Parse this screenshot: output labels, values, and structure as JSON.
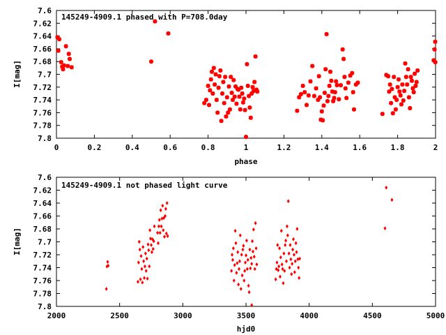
{
  "chart_data": [
    {
      "type": "scatter",
      "title": "145249-4909.1 phased with P=708.0day",
      "xlabel": "phase",
      "ylabel": "I[mag]",
      "xlim": [
        0,
        2
      ],
      "ylim": [
        7.8,
        7.6
      ],
      "y_inverted": true,
      "x_ticks": [
        "0",
        "0.2",
        "0.4",
        "0.6",
        "0.8",
        "1",
        "1.2",
        "1.4",
        "1.6",
        "1.8",
        "2"
      ],
      "y_ticks": [
        "7.6",
        "7.62",
        "7.64",
        "7.66",
        "7.68",
        "7.7",
        "7.72",
        "7.74",
        "7.76",
        "7.78",
        "7.8"
      ],
      "marker": "asterisk",
      "color": "#ff0000",
      "grid": false,
      "points": [
        [
          0.005,
          7.642
        ],
        [
          0.01,
          7.663
        ],
        [
          0.015,
          7.645
        ],
        [
          0.025,
          7.681
        ],
        [
          0.03,
          7.688
        ],
        [
          0.035,
          7.692
        ],
        [
          0.04,
          7.686
        ],
        [
          0.05,
          7.656
        ],
        [
          0.06,
          7.687
        ],
        [
          0.065,
          7.668
        ],
        [
          0.07,
          7.676
        ],
        [
          0.08,
          7.689
        ],
        [
          0.5,
          7.68
        ],
        [
          0.52,
          7.617
        ],
        [
          0.59,
          7.636
        ],
        [
          0.78,
          7.745
        ],
        [
          0.79,
          7.74
        ],
        [
          0.8,
          7.718
        ],
        [
          0.805,
          7.748
        ],
        [
          0.81,
          7.725
        ],
        [
          0.815,
          7.708
        ],
        [
          0.82,
          7.696
        ],
        [
          0.825,
          7.73
        ],
        [
          0.83,
          7.69
        ],
        [
          0.835,
          7.716
        ],
        [
          0.84,
          7.7
        ],
        [
          0.845,
          7.74
        ],
        [
          0.85,
          7.76
        ],
        [
          0.855,
          7.721
        ],
        [
          0.86,
          7.703
        ],
        [
          0.865,
          7.694
        ],
        [
          0.87,
          7.773
        ],
        [
          0.875,
          7.73
        ],
        [
          0.88,
          7.712
        ],
        [
          0.885,
          7.745
        ],
        [
          0.89,
          7.704
        ],
        [
          0.895,
          7.766
        ],
        [
          0.9,
          7.736
        ],
        [
          0.905,
          7.76
        ],
        [
          0.91,
          7.719
        ],
        [
          0.915,
          7.755
        ],
        [
          0.92,
          7.704
        ],
        [
          0.925,
          7.729
        ],
        [
          0.93,
          7.74
        ],
        [
          0.935,
          7.709
        ],
        [
          0.94,
          7.735
        ],
        [
          0.945,
          7.719
        ],
        [
          0.95,
          7.746
        ],
        [
          0.955,
          7.723
        ],
        [
          0.96,
          7.724
        ],
        [
          0.965,
          7.735
        ],
        [
          0.97,
          7.755
        ],
        [
          0.975,
          7.721
        ],
        [
          0.98,
          7.73
        ],
        [
          0.985,
          7.744
        ],
        [
          0.99,
          7.738
        ],
        [
          0.995,
          7.756
        ],
        [
          1.0,
          7.798
        ],
        [
          1.005,
          7.684
        ],
        [
          1.01,
          7.718
        ],
        [
          1.015,
          7.734
        ],
        [
          1.02,
          7.752
        ],
        [
          1.025,
          7.768
        ],
        [
          1.03,
          7.73
        ],
        [
          1.035,
          7.72
        ],
        [
          1.04,
          7.726
        ],
        [
          1.045,
          7.712
        ],
        [
          1.05,
          7.672
        ],
        [
          1.055,
          7.724
        ],
        [
          1.06,
          7.727
        ],
        [
          1.27,
          7.757
        ],
        [
          1.28,
          7.736
        ],
        [
          1.29,
          7.731
        ],
        [
          1.3,
          7.718
        ],
        [
          1.31,
          7.728
        ],
        [
          1.32,
          7.748
        ],
        [
          1.33,
          7.733
        ],
        [
          1.34,
          7.711
        ],
        [
          1.35,
          7.687
        ],
        [
          1.36,
          7.734
        ],
        [
          1.37,
          7.722
        ],
        [
          1.38,
          7.74
        ],
        [
          1.385,
          7.703
        ],
        [
          1.39,
          7.736
        ],
        [
          1.395,
          7.771
        ],
        [
          1.4,
          7.758
        ],
        [
          1.405,
          7.772
        ],
        [
          1.41,
          7.749
        ],
        [
          1.415,
          7.729
        ],
        [
          1.42,
          7.692
        ],
        [
          1.425,
          7.637
        ],
        [
          1.43,
          7.742
        ],
        [
          1.435,
          7.734
        ],
        [
          1.44,
          7.718
        ],
        [
          1.445,
          7.696
        ],
        [
          1.45,
          7.71
        ],
        [
          1.455,
          7.727
        ],
        [
          1.46,
          7.742
        ],
        [
          1.465,
          7.737
        ],
        [
          1.47,
          7.728
        ],
        [
          1.475,
          7.711
        ],
        [
          1.48,
          7.717
        ],
        [
          1.49,
          7.739
        ],
        [
          1.5,
          7.717
        ],
        [
          1.51,
          7.661
        ],
        [
          1.515,
          7.676
        ],
        [
          1.52,
          7.704
        ],
        [
          1.525,
          7.722
        ],
        [
          1.53,
          7.737
        ],
        [
          1.54,
          7.713
        ],
        [
          1.55,
          7.702
        ],
        [
          1.56,
          7.698
        ],
        [
          1.565,
          7.728
        ],
        [
          1.57,
          7.755
        ],
        [
          1.58,
          7.716
        ],
        [
          1.59,
          7.713
        ],
        [
          1.72,
          7.762
        ],
        [
          1.74,
          7.701
        ],
        [
          1.75,
          7.703
        ],
        [
          1.755,
          7.727
        ],
        [
          1.76,
          7.716
        ],
        [
          1.765,
          7.745
        ],
        [
          1.77,
          7.723
        ],
        [
          1.775,
          7.761
        ],
        [
          1.78,
          7.704
        ],
        [
          1.785,
          7.736
        ],
        [
          1.79,
          7.755
        ],
        [
          1.795,
          7.74
        ],
        [
          1.8,
          7.72
        ],
        [
          1.805,
          7.708
        ],
        [
          1.81,
          7.727
        ],
        [
          1.815,
          7.733
        ],
        [
          1.82,
          7.747
        ],
        [
          1.825,
          7.716
        ],
        [
          1.83,
          7.741
        ],
        [
          1.835,
          7.726
        ],
        [
          1.84,
          7.683
        ],
        [
          1.845,
          7.704
        ],
        [
          1.85,
          7.716
        ],
        [
          1.855,
          7.692
        ],
        [
          1.86,
          7.736
        ],
        [
          1.865,
          7.753
        ],
        [
          1.87,
          7.704
        ],
        [
          1.875,
          7.71
        ],
        [
          1.88,
          7.722
        ],
        [
          1.885,
          7.728
        ],
        [
          1.89,
          7.699
        ],
        [
          1.895,
          7.718
        ],
        [
          1.9,
          7.712
        ],
        [
          1.905,
          7.694
        ],
        [
          1.99,
          7.678
        ],
        [
          1.995,
          7.661
        ],
        [
          1.998,
          7.649
        ],
        [
          1.999,
          7.681
        ]
      ]
    },
    {
      "type": "scatter",
      "title": "145249-4909.1 not phased light curve",
      "xlabel": "hjd0",
      "ylabel": "I[mag]",
      "xlim": [
        2000,
        5000
      ],
      "ylim": [
        7.8,
        7.6
      ],
      "y_inverted": true,
      "x_ticks": [
        "2000",
        "2500",
        "3000",
        "3500",
        "4000",
        "4500",
        "5000"
      ],
      "y_ticks": [
        "7.6",
        "7.62",
        "7.64",
        "7.66",
        "7.68",
        "7.7",
        "7.72",
        "7.74",
        "7.76",
        "7.78",
        "7.8"
      ],
      "marker": "diamond",
      "color": "#ff0000",
      "grid": false,
      "points": [
        [
          2395,
          7.773
        ],
        [
          2400,
          7.738
        ],
        [
          2405,
          7.731
        ],
        [
          2410,
          7.737
        ],
        [
          2645,
          7.762
        ],
        [
          2650,
          7.732
        ],
        [
          2655,
          7.7
        ],
        [
          2660,
          7.712
        ],
        [
          2665,
          7.758
        ],
        [
          2670,
          7.722
        ],
        [
          2675,
          7.742
        ],
        [
          2680,
          7.763
        ],
        [
          2685,
          7.708
        ],
        [
          2690,
          7.73
        ],
        [
          2695,
          7.756
        ],
        [
          2700,
          7.738
        ],
        [
          2705,
          7.718
        ],
        [
          2710,
          7.745
        ],
        [
          2715,
          7.726
        ],
        [
          2720,
          7.757
        ],
        [
          2725,
          7.704
        ],
        [
          2730,
          7.713
        ],
        [
          2735,
          7.738
        ],
        [
          2740,
          7.682
        ],
        [
          2745,
          7.695
        ],
        [
          2750,
          7.705
        ],
        [
          2755,
          7.716
        ],
        [
          2760,
          7.696
        ],
        [
          2765,
          7.711
        ],
        [
          2770,
          7.699
        ],
        [
          2775,
          7.676
        ],
        [
          2800,
          7.686
        ],
        [
          2805,
          7.702
        ],
        [
          2810,
          7.676
        ],
        [
          2815,
          7.666
        ],
        [
          2820,
          7.686
        ],
        [
          2825,
          7.651
        ],
        [
          2830,
          7.676
        ],
        [
          2835,
          7.664
        ],
        [
          2840,
          7.644
        ],
        [
          2845,
          7.682
        ],
        [
          2850,
          7.663
        ],
        [
          2855,
          7.692
        ],
        [
          2860,
          7.66
        ],
        [
          2865,
          7.649
        ],
        [
          2870,
          7.687
        ],
        [
          2875,
          7.64
        ],
        [
          2880,
          7.691
        ],
        [
          3385,
          7.745
        ],
        [
          3390,
          7.72
        ],
        [
          3395,
          7.728
        ],
        [
          3400,
          7.71
        ],
        [
          3405,
          7.76
        ],
        [
          3410,
          7.736
        ],
        [
          3415,
          7.683
        ],
        [
          3420,
          7.702
        ],
        [
          3425,
          7.748
        ],
        [
          3430,
          7.733
        ],
        [
          3435,
          7.716
        ],
        [
          3440,
          7.766
        ],
        [
          3445,
          7.742
        ],
        [
          3450,
          7.73
        ],
        [
          3455,
          7.69
        ],
        [
          3460,
          7.773
        ],
        [
          3465,
          7.72
        ],
        [
          3470,
          7.752
        ],
        [
          3475,
          7.712
        ],
        [
          3480,
          7.706
        ],
        [
          3485,
          7.76
        ],
        [
          3490,
          7.745
        ],
        [
          3495,
          7.732
        ],
        [
          3500,
          7.721
        ],
        [
          3505,
          7.698
        ],
        [
          3510,
          7.742
        ],
        [
          3515,
          7.728
        ],
        [
          3520,
          7.768
        ],
        [
          3525,
          7.778
        ],
        [
          3530,
          7.712
        ],
        [
          3535,
          7.741
        ],
        [
          3540,
          7.725
        ],
        [
          3545,
          7.734
        ],
        [
          3550,
          7.699
        ],
        [
          3555,
          7.715
        ],
        [
          3560,
          7.681
        ],
        [
          3565,
          7.723
        ],
        [
          3570,
          7.742
        ],
        [
          3575,
          7.671
        ],
        [
          3580,
          7.71
        ],
        [
          3585,
          7.735
        ],
        [
          3545,
          7.798
        ],
        [
          3735,
          7.758
        ],
        [
          3740,
          7.742
        ],
        [
          3745,
          7.732
        ],
        [
          3750,
          7.705
        ],
        [
          3755,
          7.744
        ],
        [
          3760,
          7.738
        ],
        [
          3765,
          7.71
        ],
        [
          3770,
          7.754
        ],
        [
          3775,
          7.724
        ],
        [
          3780,
          7.683
        ],
        [
          3785,
          7.735
        ],
        [
          3790,
          7.742
        ],
        [
          3795,
          7.764
        ],
        [
          3800,
          7.718
        ],
        [
          3805,
          7.745
        ],
        [
          3810,
          7.705
        ],
        [
          3815,
          7.698
        ],
        [
          3820,
          7.73
        ],
        [
          3825,
          7.676
        ],
        [
          3830,
          7.69
        ],
        [
          3835,
          7.637
        ],
        [
          3840,
          7.718
        ],
        [
          3845,
          7.74
        ],
        [
          3850,
          7.705
        ],
        [
          3855,
          7.727
        ],
        [
          3860,
          7.75
        ],
        [
          3865,
          7.734
        ],
        [
          3870,
          7.712
        ],
        [
          3875,
          7.696
        ],
        [
          3880,
          7.72
        ],
        [
          3885,
          7.747
        ],
        [
          3890,
          7.73
        ],
        [
          3895,
          7.702
        ],
        [
          3900,
          7.716
        ],
        [
          3905,
          7.68
        ],
        [
          3910,
          7.727
        ],
        [
          3915,
          7.74
        ],
        [
          3920,
          7.756
        ],
        [
          3925,
          7.726
        ],
        [
          4600,
          7.679
        ],
        [
          4610,
          7.616
        ],
        [
          4655,
          7.635
        ]
      ]
    }
  ]
}
